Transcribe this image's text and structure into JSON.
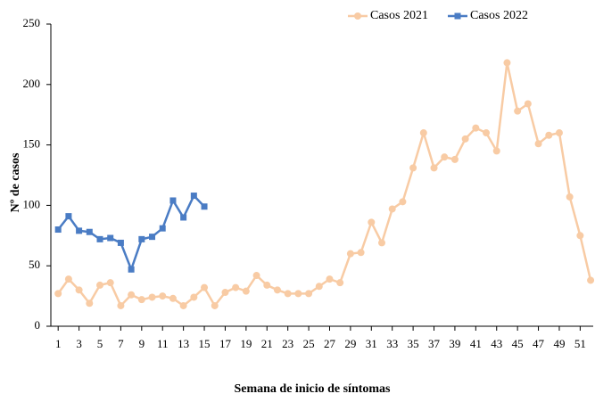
{
  "chart_data": {
    "type": "line",
    "x_label": "Semana de inicio de síntomas",
    "y_label": "Nº de casos",
    "x": [
      1,
      2,
      3,
      4,
      5,
      6,
      7,
      8,
      9,
      10,
      11,
      12,
      13,
      14,
      15,
      16,
      17,
      18,
      19,
      20,
      21,
      22,
      23,
      24,
      25,
      26,
      27,
      28,
      29,
      30,
      31,
      32,
      33,
      34,
      35,
      36,
      37,
      38,
      39,
      40,
      41,
      42,
      43,
      44,
      45,
      46,
      47,
      48,
      49,
      50,
      51,
      52
    ],
    "series": [
      {
        "name": "Casos 2021",
        "color": "#f8cba4",
        "marker": "circle",
        "values": [
          27,
          39,
          30,
          19,
          34,
          36,
          17,
          26,
          22,
          24,
          25,
          23,
          17,
          24,
          32,
          17,
          28,
          32,
          29,
          42,
          34,
          30,
          27,
          27,
          27,
          33,
          39,
          36,
          60,
          61,
          86,
          69,
          97,
          103,
          131,
          160,
          131,
          140,
          138,
          155,
          164,
          160,
          145,
          218,
          178,
          184,
          151,
          158,
          160,
          107,
          75,
          38
        ]
      },
      {
        "name": "Casos 2022",
        "color": "#4a7cc4",
        "marker": "square",
        "values": [
          80,
          91,
          79,
          78,
          72,
          73,
          69,
          47,
          72,
          74,
          81,
          104,
          90,
          108,
          99,
          null,
          null,
          null,
          null,
          null,
          null,
          null,
          null,
          null,
          null,
          null,
          null,
          null,
          null,
          null,
          null,
          null,
          null,
          null,
          null,
          null,
          null,
          null,
          null,
          null,
          null,
          null,
          null,
          null,
          null,
          null,
          null,
          null,
          null,
          null,
          null,
          null
        ]
      }
    ],
    "xlim": [
      0.3,
      52.25
    ],
    "ylim": [
      0,
      250
    ],
    "xticks": [
      1,
      3,
      5,
      7,
      9,
      11,
      13,
      15,
      17,
      19,
      21,
      23,
      25,
      27,
      29,
      31,
      33,
      35,
      37,
      39,
      41,
      43,
      45,
      47,
      49,
      51
    ],
    "yticks": [
      0,
      50,
      100,
      150,
      200,
      250
    ],
    "grid": false,
    "legend": "top-right"
  }
}
